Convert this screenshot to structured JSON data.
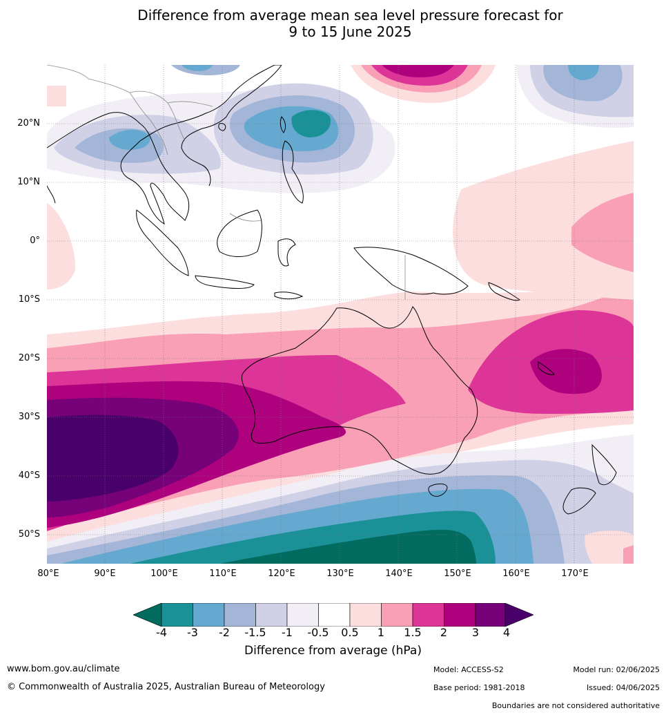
{
  "title_line1": "Difference from average mean sea level pressure forecast for",
  "title_line2": "9 to 15 June 2025",
  "lat_labels": [
    "20°N",
    "10°N",
    "0°",
    "10°S",
    "20°S",
    "30°S",
    "40°S",
    "50°S"
  ],
  "lon_labels": [
    "80°E",
    "90°E",
    "100°E",
    "110°E",
    "120°E",
    "130°E",
    "140°E",
    "150°E",
    "160°E",
    "170°E"
  ],
  "colorbar": {
    "tick_labels": [
      "-4",
      "-3",
      "-2",
      "-1.5",
      "-1",
      "-0.5",
      "0.5",
      "1",
      "1.5",
      "2",
      "3",
      "4"
    ],
    "colors": [
      "#006b5e",
      "#1a9197",
      "#65a8d0",
      "#a4b6d8",
      "#d0d1e6",
      "#f2eef6",
      "#ffffff",
      "#fddede",
      "#f99fb6",
      "#dd3497",
      "#ae017e",
      "#760178",
      "#49006a"
    ],
    "label": "Difference from average (hPa)"
  },
  "footer": {
    "website": "www.bom.gov.au/climate",
    "copyright": "© Commonwealth of Australia 2025, Australian Bureau of Meteorology",
    "model": "Model: ACCESS-S2",
    "base_period": "Base period: 1981-2018",
    "model_run": "Model run: 02/06/2025",
    "issued": "Issued: 04/06/2025",
    "disclaimer": "Boundaries are not considered authoritative"
  }
}
